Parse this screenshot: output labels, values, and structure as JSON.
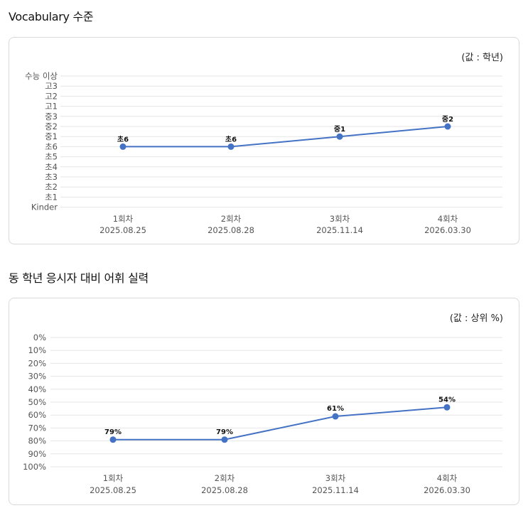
{
  "sections": [
    {
      "title": "Vocabulary 수준",
      "unit": "(값 : 학년)"
    },
    {
      "title": "동 학년 응시자 대비 어휘 실력",
      "unit": "(값 : 상위 %)"
    }
  ],
  "chart_data": [
    {
      "type": "line",
      "y_categories_top_to_bottom": [
        "수능 이상",
        "고3",
        "고2",
        "고1",
        "중3",
        "중2",
        "중1",
        "초6",
        "초5",
        "초4",
        "초3",
        "초2",
        "초1",
        "Kinder"
      ],
      "categories": [
        {
          "round": "1회차",
          "date": "2025.08.25"
        },
        {
          "round": "2회차",
          "date": "2025.08.28"
        },
        {
          "round": "3회차",
          "date": "2025.11.14"
        },
        {
          "round": "4회차",
          "date": "2026.03.30"
        }
      ],
      "values": [
        "초6",
        "초6",
        "중1",
        "중2"
      ],
      "data_labels": [
        "초6",
        "초6",
        "중1",
        "중2"
      ],
      "color": "#4472c4",
      "grid": true,
      "legend": "none"
    },
    {
      "type": "line",
      "y_ticks_top_to_bottom": [
        "0%",
        "10%",
        "20%",
        "30%",
        "40%",
        "50%",
        "60%",
        "70%",
        "80%",
        "90%",
        "100%"
      ],
      "ylim": [
        0,
        100
      ],
      "y_inverted": true,
      "categories": [
        {
          "round": "1회차",
          "date": "2025.08.25"
        },
        {
          "round": "2회차",
          "date": "2025.08.28"
        },
        {
          "round": "3회차",
          "date": "2025.11.14"
        },
        {
          "round": "4회차",
          "date": "2026.03.30"
        }
      ],
      "values": [
        79,
        79,
        61,
        54
      ],
      "data_labels": [
        "79%",
        "79%",
        "61%",
        "54%"
      ],
      "color": "#4472c4",
      "grid": true,
      "legend": "none"
    }
  ]
}
